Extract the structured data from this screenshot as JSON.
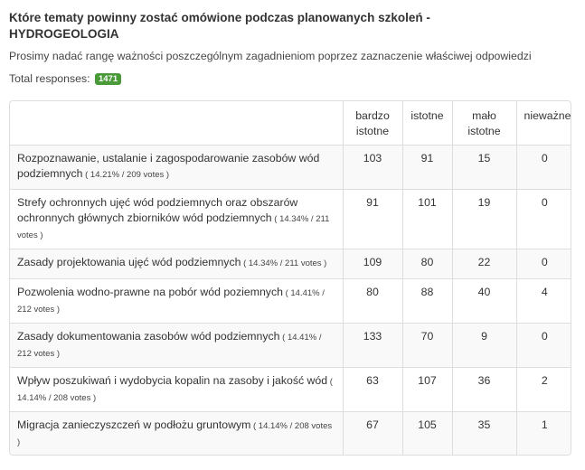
{
  "survey": {
    "title": "Które tematy powinny zostać omówione podczas planowanych szkoleń - HYDROGEOLOGIA",
    "subtitle": "Prosimy nadać rangę ważności poszczególnym zagadnieniom poprzez zaznaczenie właściwej odpowiedzi",
    "total_label": "Total responses:",
    "total_value": "1471"
  },
  "table": {
    "headers": [
      "",
      "bardzo istotne",
      "istotne",
      "mało istotne",
      "nieważne"
    ],
    "rows": [
      {
        "label": "Rozpoznawanie, ustalanie i zagospodarowanie zasobów wód podziemnych",
        "votes": " ( 14.21% / 209 votes )",
        "values": [
          "103",
          "91",
          "15",
          "0"
        ]
      },
      {
        "label": "Strefy ochronnych ujęć wód podziemnych oraz obszarów ochronnych głównych zbiorników wód podziemnych",
        "votes": " ( 14.34% / 211 votes )",
        "values": [
          "91",
          "101",
          "19",
          "0"
        ]
      },
      {
        "label": "Zasady projektowania ujęć wód podziemnych",
        "votes": " ( 14.34% / 211 votes )",
        "values": [
          "109",
          "80",
          "22",
          "0"
        ]
      },
      {
        "label": "Pozwolenia wodno-prawne na pobór wód poziemnych",
        "votes": " ( 14.41% / 212 votes )",
        "values": [
          "80",
          "88",
          "40",
          "4"
        ]
      },
      {
        "label": "Zasady dokumentowania zasobów wód podziemnych",
        "votes": " ( 14.41% / 212 votes )",
        "values": [
          "133",
          "70",
          "9",
          "0"
        ]
      },
      {
        "label": "Wpływ poszukiwań i wydobycia kopalin na zasoby i jakość wód",
        "votes": " ( 14.14% / 208 votes )",
        "values": [
          "63",
          "107",
          "36",
          "2"
        ]
      },
      {
        "label": "Migracja zanieczyszczeń w podłożu gruntowym",
        "votes": " ( 14.14% / 208 votes )",
        "values": [
          "67",
          "105",
          "35",
          "1"
        ]
      }
    ]
  }
}
